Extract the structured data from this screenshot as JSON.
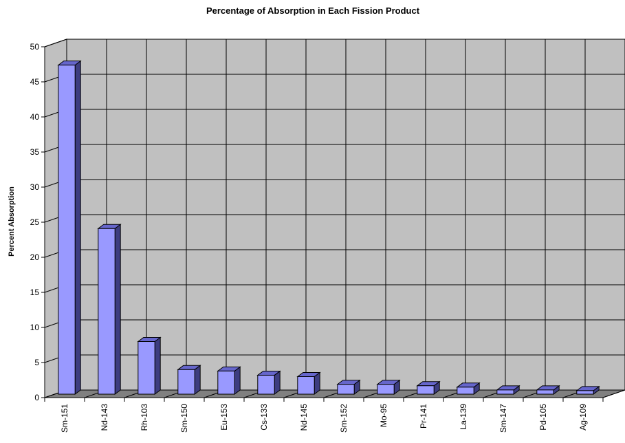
{
  "colors": {
    "wall": "#c0c0c0",
    "floor": "#808080",
    "grid": "#000000",
    "bar_front": "#9999ff",
    "bar_top": "#6666cc",
    "bar_side": "#3d3d80",
    "bar_outline": "#000000"
  },
  "chart_data": {
    "type": "bar",
    "title": "Percentage of Absorption in Each Fission Product",
    "xlabel": "",
    "ylabel": "Percent Absorption",
    "ylim": [
      0,
      50
    ],
    "yticks": [
      0,
      5,
      10,
      15,
      20,
      25,
      30,
      35,
      40,
      45,
      50
    ],
    "grid": true,
    "legend": "none",
    "style": "3d-clustered-column",
    "categories": [
      "Sm-151",
      "Nd-143",
      "Rh-103",
      "Sm-150",
      "Eu-153",
      "Cs-133",
      "Nd-145",
      "Sm-152",
      "Mo-95",
      "Pr-141",
      "La-139",
      "Sm-147",
      "Pd-105",
      "Ag-109"
    ],
    "values": [
      46.9,
      23.6,
      7.5,
      3.5,
      3.3,
      2.7,
      2.5,
      1.4,
      1.4,
      1.2,
      1.0,
      0.6,
      0.6,
      0.5
    ]
  }
}
